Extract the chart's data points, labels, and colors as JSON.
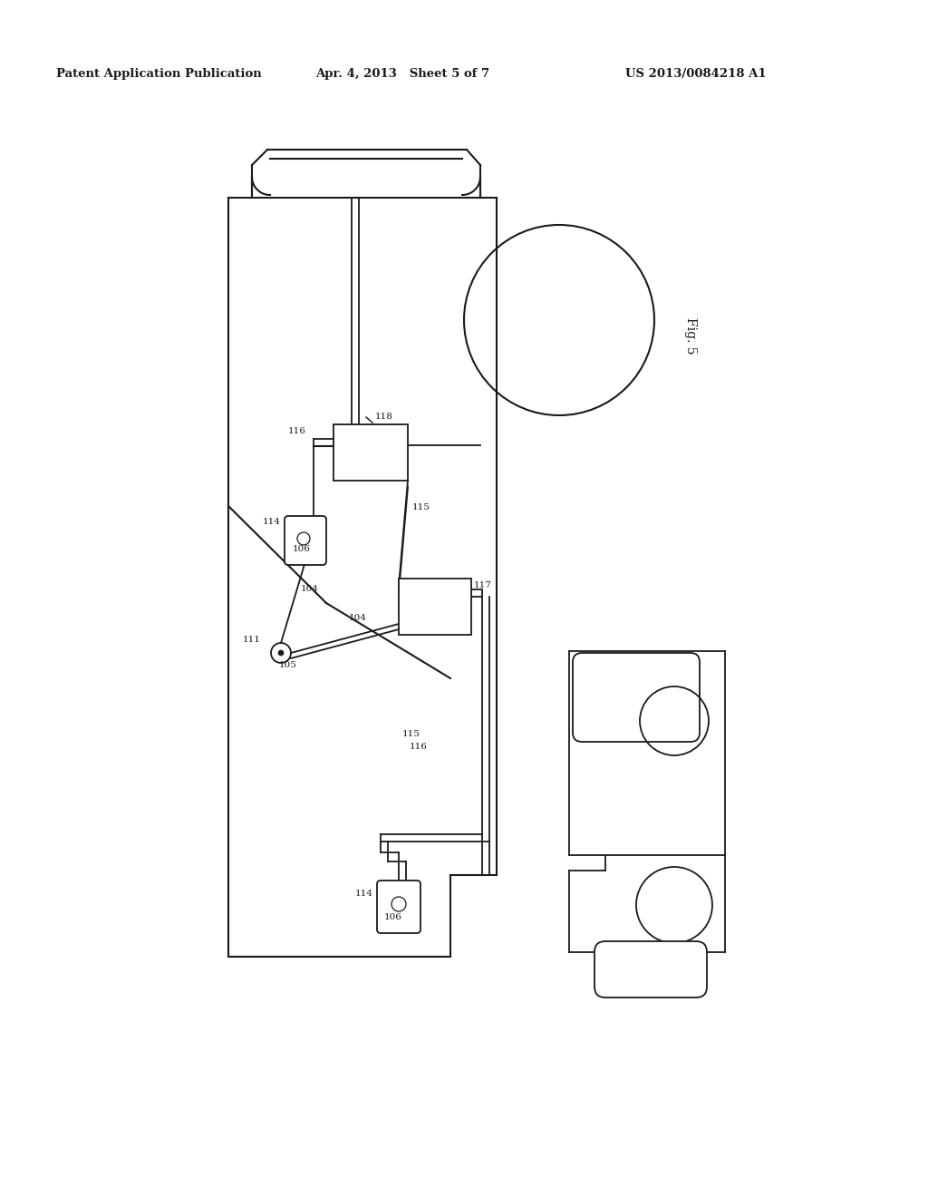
{
  "header_left": "Patent Application Publication",
  "header_mid": "Apr. 4, 2013   Sheet 5 of 7",
  "header_right": "US 2013/0084218 A1",
  "fig_label": "Fig. 5",
  "bg_color": "#ffffff",
  "line_color": "#1a1a1a",
  "lw": 1.3
}
